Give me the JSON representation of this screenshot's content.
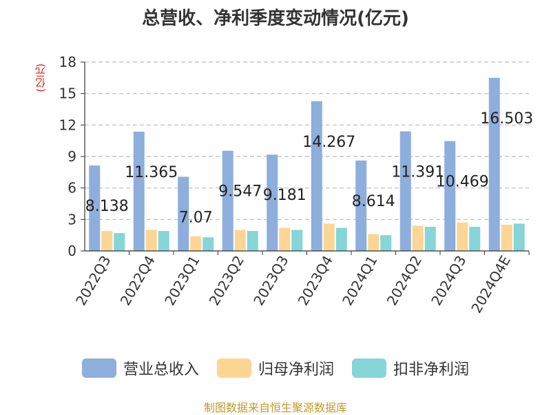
{
  "chart_data": {
    "type": "bar",
    "title": "总营收、净利季度变动情况(亿元)",
    "ylabel": "(亿元)",
    "xlabel": "",
    "ylim": [
      0,
      18
    ],
    "yticks": [
      0,
      3,
      6,
      9,
      12,
      15,
      18
    ],
    "grid": true,
    "legend_position": "bottom",
    "categories": [
      "2022Q3",
      "2022Q4",
      "2023Q1",
      "2023Q2",
      "2023Q3",
      "2023Q4",
      "2024Q1",
      "2024Q2",
      "2024Q3",
      "2024Q4E"
    ],
    "series": [
      {
        "name": "营业总收入",
        "color": "#8eaedc",
        "values": [
          8.138,
          11.365,
          7.07,
          9.547,
          9.181,
          14.267,
          8.614,
          11.391,
          10.469,
          16.503
        ],
        "data_labels": [
          "8.138",
          "11.365",
          "7.07",
          "9.547",
          "9.181",
          "14.267",
          "8.614",
          "11.391",
          "10.469",
          "16.503"
        ]
      },
      {
        "name": "归母净利润",
        "color": "#fdd594",
        "values": [
          1.9,
          2.0,
          1.4,
          2.0,
          2.2,
          2.6,
          1.6,
          2.4,
          2.7,
          2.5
        ]
      },
      {
        "name": "扣非净利润",
        "color": "#86d5d8",
        "values": [
          1.7,
          1.9,
          1.3,
          1.9,
          2.0,
          2.2,
          1.5,
          2.3,
          2.3,
          2.6
        ]
      }
    ]
  },
  "footer": {
    "source": "制图数据来自恒生聚源数据库"
  }
}
